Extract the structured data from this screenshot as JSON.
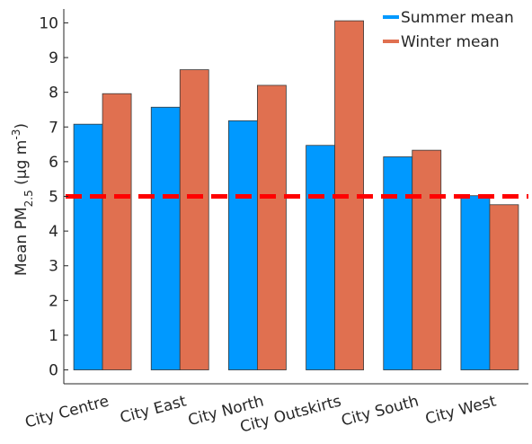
{
  "chart_data": {
    "type": "bar",
    "categories": [
      "City Centre",
      "City East",
      "City North",
      "City Outskirts",
      "City South",
      "City West"
    ],
    "series": [
      {
        "name": "Summer mean",
        "values": [
          7.08,
          7.57,
          7.18,
          6.47,
          6.14,
          5.02
        ],
        "color": "#0099ff"
      },
      {
        "name": "Winter mean",
        "values": [
          7.96,
          8.65,
          8.2,
          10.06,
          6.33,
          4.76
        ],
        "color": "#e07050"
      }
    ],
    "ylabel": {
      "prefix": "Mean PM",
      "sub": "2.5",
      "unit_open": " (μg m",
      "sup": "-3",
      "unit_close": ")"
    },
    "ylim": [
      -0.4,
      10.4
    ],
    "yticks": [
      "0",
      "1",
      "2",
      "3",
      "4",
      "5",
      "6",
      "7",
      "8",
      "9",
      "10"
    ],
    "reference_line": {
      "value": 5,
      "color": "#ff0000",
      "style": "dashed"
    },
    "grid": false,
    "legend_position": "top-right"
  }
}
